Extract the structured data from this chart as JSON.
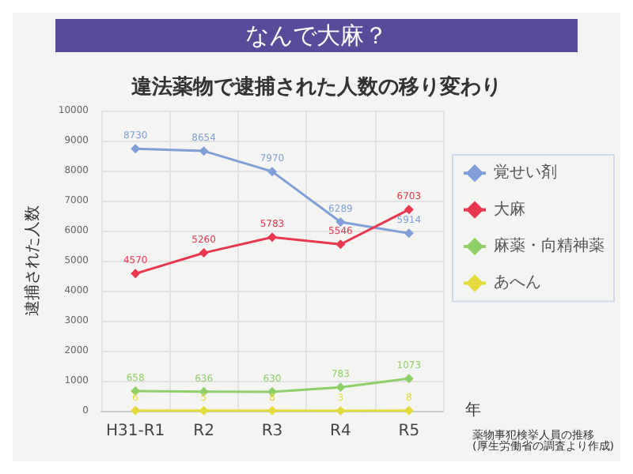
{
  "chart_data": {
    "type": "line",
    "title": "なんで大麻？",
    "subtitle": "違法薬物で逮捕された人数の移り変わり",
    "xlabel": "年",
    "ylabel": "逮捕された人数",
    "categories": [
      "H31-R1",
      "R2",
      "R3",
      "R4",
      "R5"
    ],
    "series": [
      {
        "name": "覚せい剤",
        "color": "#7f9fd6",
        "values": [
          8730,
          8654,
          7970,
          6289,
          5914
        ]
      },
      {
        "name": "大麻",
        "color": "#e8384f",
        "values": [
          4570,
          5260,
          5783,
          5546,
          6703
        ]
      },
      {
        "name": "麻薬・向精神薬",
        "color": "#8fcf6a",
        "values": [
          658,
          636,
          630,
          783,
          1073
        ]
      },
      {
        "name": "あへん",
        "color": "#e3dc3c",
        "values": [
          6,
          5,
          8,
          3,
          8
        ]
      }
    ],
    "ylim": [
      0,
      10000
    ],
    "yticks": [
      0,
      1000,
      2000,
      3000,
      4000,
      5000,
      6000,
      7000,
      8000,
      9000,
      10000
    ],
    "grid": true,
    "legend": "right",
    "marker": "diamond",
    "data_labels": true,
    "annotations": [
      "薬物事犯検挙人員の推移\n(厚生労働省の調査より作成)"
    ]
  }
}
